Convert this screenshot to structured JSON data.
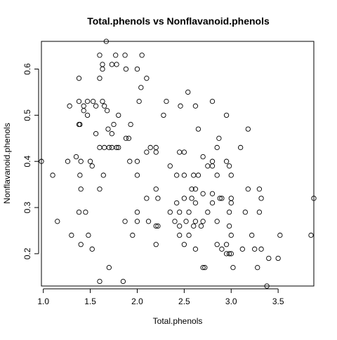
{
  "chart_data": {
    "type": "scatter",
    "title": "Total.phenols vs Nonflavanoid.phenols",
    "xlabel": "Total.phenols",
    "ylabel": "Nonflavanoid.phenols",
    "xlim": [
      0.98,
      3.88
    ],
    "ylim": [
      0.13,
      0.66
    ],
    "xticks": [
      "1.0",
      "1.5",
      "2.0",
      "2.5",
      "3.0",
      "3.5"
    ],
    "yticks": [
      "0.2",
      "0.3",
      "0.4",
      "0.5",
      "0.6"
    ],
    "marker": "open-circle",
    "grid": false,
    "legend": "none",
    "points": [
      [
        1.67,
        0.66
      ],
      [
        2.05,
        0.63
      ],
      [
        1.87,
        0.63
      ],
      [
        1.77,
        0.63
      ],
      [
        1.6,
        0.63
      ],
      [
        1.63,
        0.61
      ],
      [
        1.63,
        0.6
      ],
      [
        1.73,
        0.61
      ],
      [
        1.78,
        0.61
      ],
      [
        2.0,
        0.6
      ],
      [
        1.88,
        0.6
      ],
      [
        1.38,
        0.58
      ],
      [
        1.6,
        0.58
      ],
      [
        2.1,
        0.58
      ],
      [
        2.04,
        0.56
      ],
      [
        2.54,
        0.55
      ],
      [
        2.31,
        0.53
      ],
      [
        2.8,
        0.53
      ],
      [
        2.02,
        0.53
      ],
      [
        1.38,
        0.53
      ],
      [
        1.47,
        0.53
      ],
      [
        1.53,
        0.53
      ],
      [
        1.63,
        0.53
      ],
      [
        1.28,
        0.52
      ],
      [
        1.43,
        0.52
      ],
      [
        1.56,
        0.52
      ],
      [
        1.65,
        0.52
      ],
      [
        2.46,
        0.52
      ],
      [
        2.62,
        0.52
      ],
      [
        1.43,
        0.51
      ],
      [
        1.68,
        0.51
      ],
      [
        1.47,
        0.5
      ],
      [
        1.8,
        0.5
      ],
      [
        2.28,
        0.5
      ],
      [
        2.95,
        0.5
      ],
      [
        1.75,
        0.48
      ],
      [
        1.38,
        0.48
      ],
      [
        1.39,
        0.48
      ],
      [
        1.93,
        0.48
      ],
      [
        1.69,
        0.47
      ],
      [
        2.65,
        0.47
      ],
      [
        3.18,
        0.47
      ],
      [
        1.56,
        0.46
      ],
      [
        1.73,
        0.46
      ],
      [
        1.88,
        0.45
      ],
      [
        1.91,
        0.45
      ],
      [
        2.87,
        0.45
      ],
      [
        2.14,
        0.43
      ],
      [
        2.2,
        0.43
      ],
      [
        1.6,
        0.43
      ],
      [
        1.65,
        0.43
      ],
      [
        1.7,
        0.43
      ],
      [
        1.73,
        0.43
      ],
      [
        1.78,
        0.43
      ],
      [
        1.8,
        0.43
      ],
      [
        2.85,
        0.43
      ],
      [
        3.1,
        0.43
      ],
      [
        2.1,
        0.42
      ],
      [
        2.2,
        0.42
      ],
      [
        2.45,
        0.42
      ],
      [
        2.5,
        0.42
      ],
      [
        1.35,
        0.41
      ],
      [
        2.7,
        0.41
      ],
      [
        0.98,
        0.4
      ],
      [
        1.26,
        0.4
      ],
      [
        1.4,
        0.4
      ],
      [
        1.5,
        0.4
      ],
      [
        1.92,
        0.4
      ],
      [
        2.0,
        0.4
      ],
      [
        2.8,
        0.4
      ],
      [
        2.95,
        0.4
      ],
      [
        1.52,
        0.39
      ],
      [
        2.35,
        0.39
      ],
      [
        2.75,
        0.39
      ],
      [
        2.8,
        0.39
      ],
      [
        2.98,
        0.39
      ],
      [
        1.1,
        0.37
      ],
      [
        1.39,
        0.37
      ],
      [
        1.64,
        0.37
      ],
      [
        2.0,
        0.37
      ],
      [
        2.42,
        0.37
      ],
      [
        2.5,
        0.37
      ],
      [
        2.6,
        0.37
      ],
      [
        2.65,
        0.37
      ],
      [
        2.85,
        0.37
      ],
      [
        3.0,
        0.37
      ],
      [
        1.6,
        0.34
      ],
      [
        1.4,
        0.34
      ],
      [
        2.2,
        0.34
      ],
      [
        2.58,
        0.34
      ],
      [
        2.62,
        0.34
      ],
      [
        3.18,
        0.34
      ],
      [
        3.3,
        0.34
      ],
      [
        2.8,
        0.33
      ],
      [
        2.7,
        0.33
      ],
      [
        2.5,
        0.32
      ],
      [
        2.1,
        0.32
      ],
      [
        2.22,
        0.32
      ],
      [
        2.58,
        0.32
      ],
      [
        2.88,
        0.32
      ],
      [
        2.9,
        0.32
      ],
      [
        3.0,
        0.32
      ],
      [
        3.32,
        0.32
      ],
      [
        3.88,
        0.32
      ],
      [
        2.42,
        0.31
      ],
      [
        2.62,
        0.31
      ],
      [
        2.8,
        0.31
      ],
      [
        3.0,
        0.31
      ],
      [
        1.38,
        0.29
      ],
      [
        1.45,
        0.29
      ],
      [
        2.0,
        0.29
      ],
      [
        2.35,
        0.29
      ],
      [
        2.45,
        0.29
      ],
      [
        2.55,
        0.29
      ],
      [
        2.75,
        0.29
      ],
      [
        2.98,
        0.29
      ],
      [
        3.15,
        0.29
      ],
      [
        3.3,
        0.29
      ],
      [
        1.15,
        0.27
      ],
      [
        1.87,
        0.27
      ],
      [
        2.0,
        0.27
      ],
      [
        2.12,
        0.27
      ],
      [
        2.4,
        0.27
      ],
      [
        2.52,
        0.27
      ],
      [
        2.62,
        0.27
      ],
      [
        2.7,
        0.27
      ],
      [
        2.85,
        0.27
      ],
      [
        2.2,
        0.26
      ],
      [
        2.22,
        0.26
      ],
      [
        2.45,
        0.26
      ],
      [
        2.6,
        0.26
      ],
      [
        2.68,
        0.26
      ],
      [
        2.98,
        0.26
      ],
      [
        1.3,
        0.24
      ],
      [
        1.48,
        0.24
      ],
      [
        1.95,
        0.24
      ],
      [
        2.45,
        0.24
      ],
      [
        2.55,
        0.24
      ],
      [
        3.0,
        0.24
      ],
      [
        3.22,
        0.24
      ],
      [
        3.52,
        0.24
      ],
      [
        3.85,
        0.24
      ],
      [
        1.4,
        0.22
      ],
      [
        2.2,
        0.22
      ],
      [
        2.5,
        0.22
      ],
      [
        2.85,
        0.22
      ],
      [
        2.95,
        0.22
      ],
      [
        1.52,
        0.21
      ],
      [
        2.62,
        0.21
      ],
      [
        2.9,
        0.21
      ],
      [
        3.12,
        0.21
      ],
      [
        3.25,
        0.21
      ],
      [
        3.32,
        0.21
      ],
      [
        2.95,
        0.2
      ],
      [
        2.98,
        0.2
      ],
      [
        3.0,
        0.2
      ],
      [
        3.4,
        0.19
      ],
      [
        3.5,
        0.19
      ],
      [
        1.7,
        0.17
      ],
      [
        2.7,
        0.17
      ],
      [
        2.72,
        0.17
      ],
      [
        3.02,
        0.17
      ],
      [
        3.28,
        0.17
      ],
      [
        1.6,
        0.14
      ],
      [
        1.85,
        0.14
      ],
      [
        3.38,
        0.13
      ]
    ]
  }
}
